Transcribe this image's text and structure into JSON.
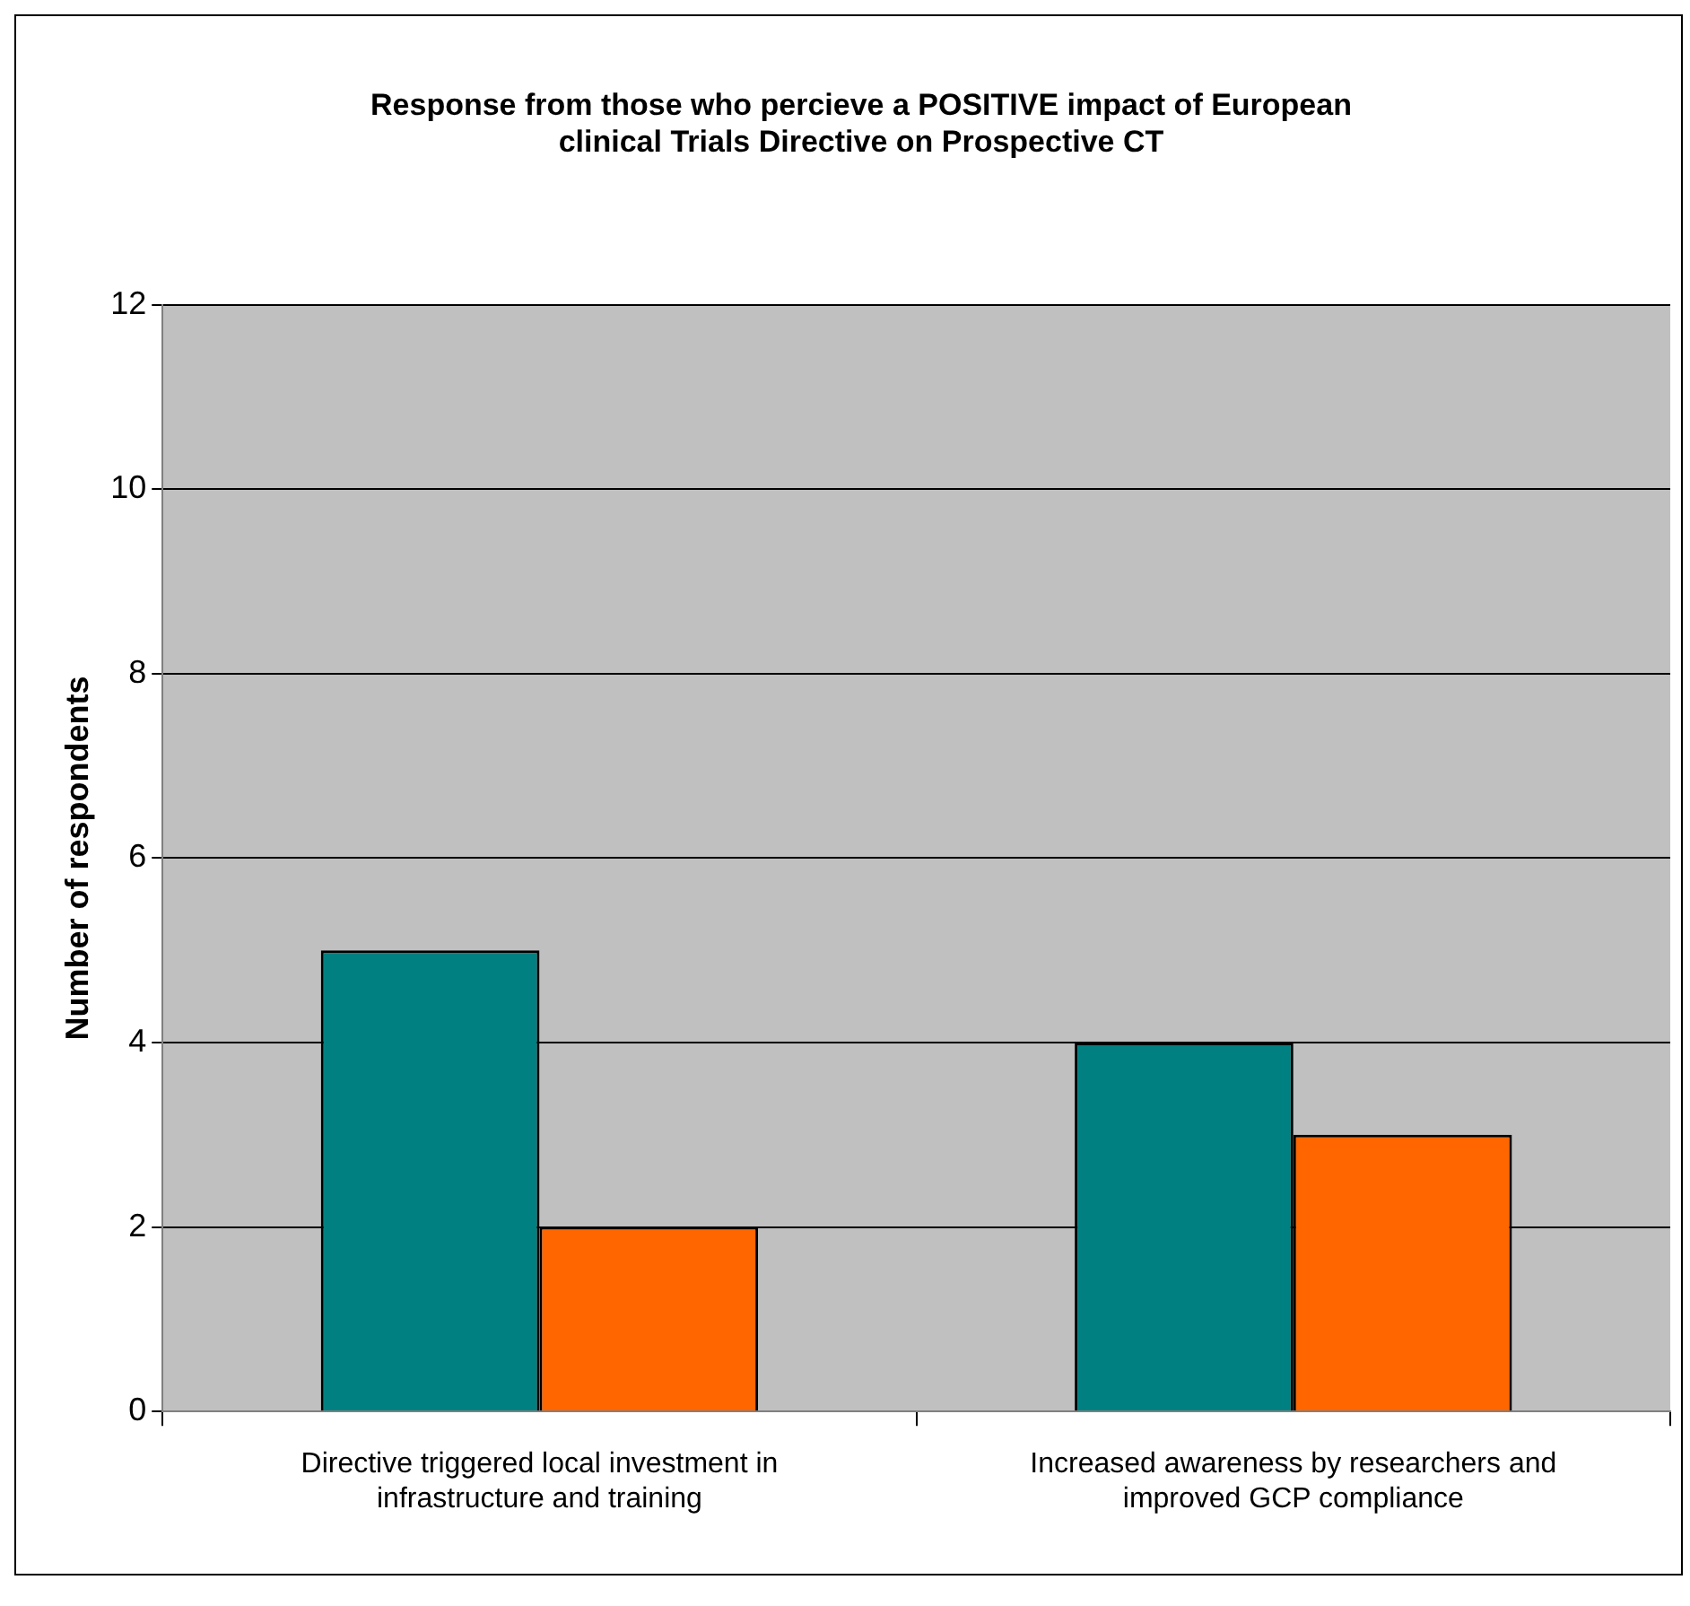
{
  "chart_data": {
    "type": "bar",
    "title": "Response from those who percieve a POSITIVE impact of European clinical Trials Directive on Prospective CT",
    "ylabel": "Number of respondents",
    "categories": [
      "Directive triggered local investment in infrastructure and training",
      "Increased awareness by researchers and improved GCP compliance"
    ],
    "series": [
      {
        "color": "#008080",
        "values": [
          5,
          4
        ]
      },
      {
        "color": "#ff6600",
        "values": [
          2,
          3
        ]
      }
    ],
    "ylim": [
      0,
      12
    ],
    "yticks": [
      0,
      2,
      4,
      6,
      8,
      10,
      12
    ],
    "grid": "y",
    "legend": false
  }
}
